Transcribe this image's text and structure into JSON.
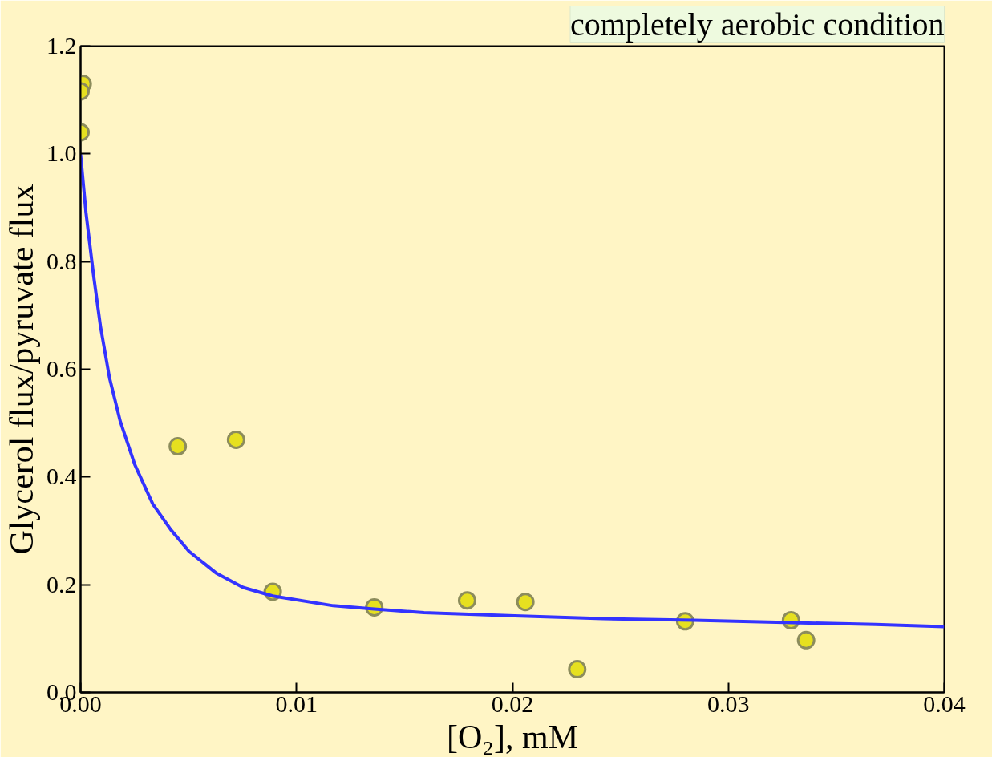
{
  "chart_data": {
    "type": "scatter",
    "xlabel": "[O₂], mM",
    "ylabel": "Glycerol flux/pyruvate flux",
    "annotations": [
      "completely aerobic condition"
    ],
    "xlim": [
      0,
      0.04
    ],
    "ylim": [
      0,
      1.2
    ],
    "xticks": [
      {
        "value": 0,
        "label": "0.00"
      },
      {
        "value": 0.01,
        "label": "0.01"
      },
      {
        "value": 0.02,
        "label": "0.02"
      },
      {
        "value": 0.03,
        "label": "0.03"
      },
      {
        "value": 0.04,
        "label": "0.04"
      }
    ],
    "yticks": [
      {
        "value": 0,
        "label": "0.0"
      },
      {
        "value": 0.2,
        "label": "0.2"
      },
      {
        "value": 0.4,
        "label": "0.4"
      },
      {
        "value": 0.6,
        "label": "0.6"
      },
      {
        "value": 0.8,
        "label": "0.8"
      },
      {
        "value": 1.0,
        "label": "1.0"
      },
      {
        "value": 1.2,
        "label": "1.2"
      }
    ],
    "grid": false,
    "series": [
      {
        "marker": "circle",
        "color": "#e6e020",
        "x": [
          0.0001,
          0.0,
          0.0,
          0.0045,
          0.0072,
          0.0089,
          0.0136,
          0.0179,
          0.0206,
          0.023,
          0.028,
          0.0329,
          0.0336
        ],
        "values": [
          1.13,
          1.116,
          1.04,
          0.457,
          0.469,
          0.187,
          0.158,
          0.171,
          0.168,
          0.043,
          0.132,
          0.134,
          0.097
        ]
      },
      {
        "type": "line",
        "line_style": "solid",
        "color": "#3333ff",
        "x": [
          0,
          0.00025,
          0.00059,
          0.00092,
          0.00134,
          0.00184,
          0.00251,
          0.00334,
          0.00418,
          0.00502,
          0.00627,
          0.00752,
          0.0089,
          0.0117,
          0.0136,
          0.0159,
          0.0201,
          0.0242,
          0.0284,
          0.0326,
          0.0368,
          0.04
        ],
        "values": [
          0.999,
          0.891,
          0.778,
          0.68,
          0.584,
          0.503,
          0.423,
          0.35,
          0.302,
          0.262,
          0.222,
          0.195,
          0.179,
          0.161,
          0.155,
          0.148,
          0.142,
          0.137,
          0.134,
          0.13,
          0.126,
          0.122
        ]
      }
    ]
  }
}
